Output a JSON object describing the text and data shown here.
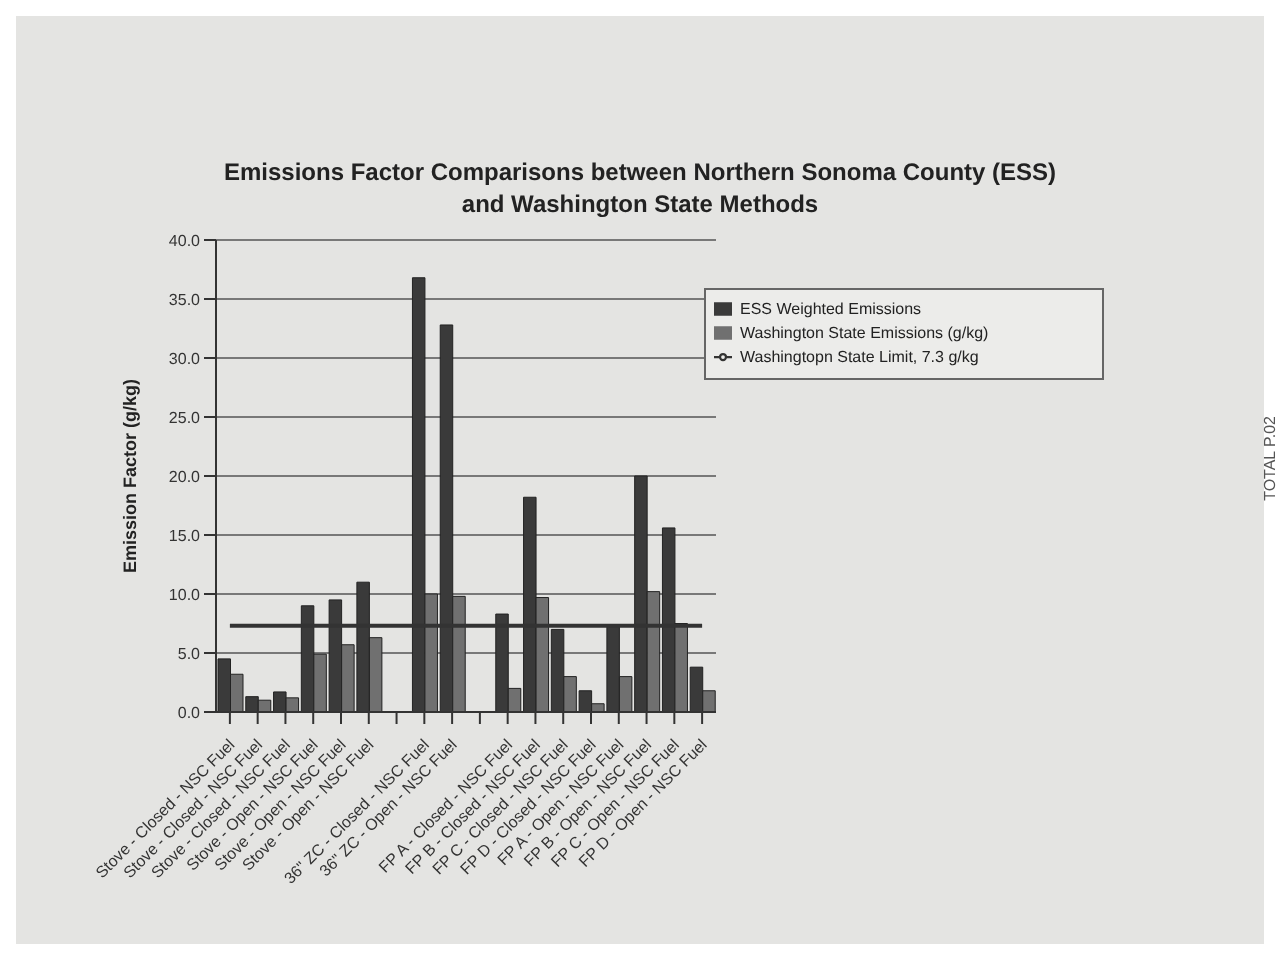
{
  "chart_data": {
    "type": "bar",
    "title": "Emissions Factor Comparisons between Northern Sonoma County (ESS)\nand Washington State Methods",
    "ylabel": "Emission Factor (g/kg)",
    "categories": [
      "Stove - Closed - NSC Fuel",
      "Stove - Closed - NSC Fuel",
      "Stove - Closed - NSC Fuel",
      "Stove - Open - NSC Fuel",
      "Stove - Open - NSC Fuel",
      "Stove - Open - NSC Fuel",
      null,
      "36\" ZC - Closed - NSC Fuel",
      "36\" ZC - Open - NSC Fuel",
      null,
      "FP A - Closed - NSC Fuel",
      "FP B - Closed - NSC Fuel",
      "FP C - Closed - NSC Fuel",
      "FP D - Closed - NSC Fuel",
      "FP A - Open - NSC Fuel",
      "FP B - Open - NSC Fuel",
      "FP C - Open - NSC Fuel",
      "FP D - Open - NSC Fuel"
    ],
    "series": [
      {
        "name": "ESS Weighted Emissions",
        "color": "#3a3a3a",
        "values": [
          4.5,
          1.3,
          1.7,
          9.0,
          9.5,
          11.0,
          null,
          36.8,
          32.8,
          null,
          8.3,
          18.2,
          7.0,
          1.8,
          7.3,
          20.0,
          15.6,
          3.8
        ]
      },
      {
        "name": "Washington State Emissions (g/kg)",
        "color": "#707070",
        "values": [
          3.2,
          1.0,
          1.2,
          4.9,
          5.7,
          6.3,
          null,
          10.0,
          9.8,
          null,
          2.0,
          9.7,
          3.0,
          0.7,
          3.0,
          10.2,
          7.5,
          1.8
        ]
      },
      {
        "name": "Washingtopn State Limit, 7.3 g/kg",
        "type": "line",
        "color": "#333333",
        "values": [
          7.3,
          7.3,
          7.3,
          7.3,
          7.3,
          7.3,
          7.3,
          7.3,
          7.3,
          7.3,
          7.3,
          7.3,
          7.3,
          7.3,
          7.3,
          7.3,
          7.3,
          7.3
        ]
      }
    ],
    "ylim": [
      0,
      40
    ],
    "yticks": [
      {
        "value": 0,
        "label": "0.0"
      },
      {
        "value": 5,
        "label": "5.0"
      },
      {
        "value": 10,
        "label": "10.0"
      },
      {
        "value": 15,
        "label": "15.0"
      },
      {
        "value": 20,
        "label": "20.0"
      },
      {
        "value": 25,
        "label": "25.0"
      },
      {
        "value": 30,
        "label": "30.0"
      },
      {
        "value": 35,
        "label": "35.0"
      },
      {
        "value": 40,
        "label": "40.0"
      }
    ],
    "grid": "y",
    "legend": "top right",
    "marker": "none",
    "line_style": "solid",
    "annotations": [
      "TOTAL P.02"
    ]
  }
}
